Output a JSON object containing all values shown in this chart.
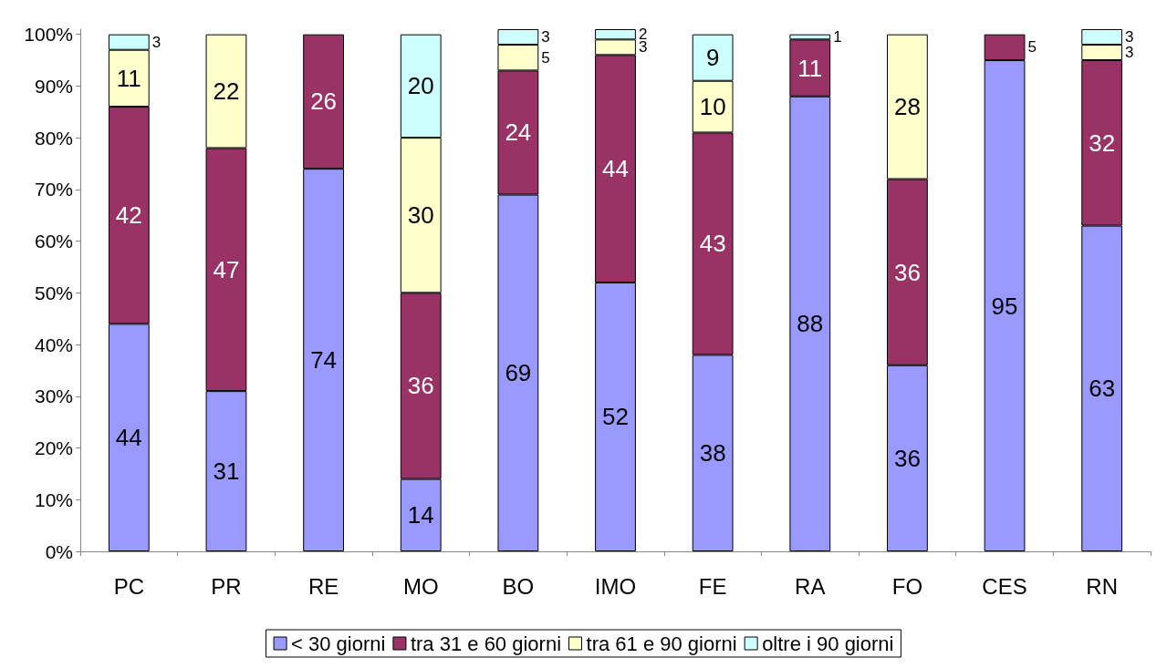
{
  "chart_data": {
    "type": "bar",
    "stacked": true,
    "categories": [
      "PC",
      "PR",
      "RE",
      "MO",
      "BO",
      "IMO",
      "FE",
      "RA",
      "FO",
      "CES",
      "RN"
    ],
    "series": [
      {
        "name": "< 30 giorni",
        "color": "#9999ff",
        "values": [
          44,
          31,
          74,
          14,
          69,
          52,
          38,
          88,
          36,
          95,
          63
        ]
      },
      {
        "name": "tra 31 e 60 giorni",
        "color": "#993366",
        "values": [
          42,
          47,
          26,
          36,
          24,
          44,
          43,
          11,
          36,
          5,
          32
        ]
      },
      {
        "name": "tra 61 e 90 giorni",
        "color": "#ffffcc",
        "values": [
          11,
          22,
          null,
          30,
          5,
          3,
          10,
          null,
          28,
          null,
          3
        ]
      },
      {
        "name": "oltre i 90 giorni",
        "color": "#ccffff",
        "values": [
          3,
          null,
          null,
          20,
          3,
          2,
          9,
          1,
          null,
          null,
          3
        ]
      }
    ],
    "ylim": [
      0,
      101
    ],
    "yticks": [
      {
        "value": 0,
        "label": "0%"
      },
      {
        "value": 10,
        "label": "10%"
      },
      {
        "value": 20,
        "label": "20%"
      },
      {
        "value": 30,
        "label": "30%"
      },
      {
        "value": 40,
        "label": "40%"
      },
      {
        "value": 50,
        "label": "50%"
      },
      {
        "value": 60,
        "label": "60%"
      },
      {
        "value": 70,
        "label": "70%"
      },
      {
        "value": 80,
        "label": "80%"
      },
      {
        "value": 90,
        "label": "90%"
      },
      {
        "value": 100,
        "label": "100%"
      }
    ],
    "grid": false,
    "legend": "bottom",
    "data_labels": true
  }
}
